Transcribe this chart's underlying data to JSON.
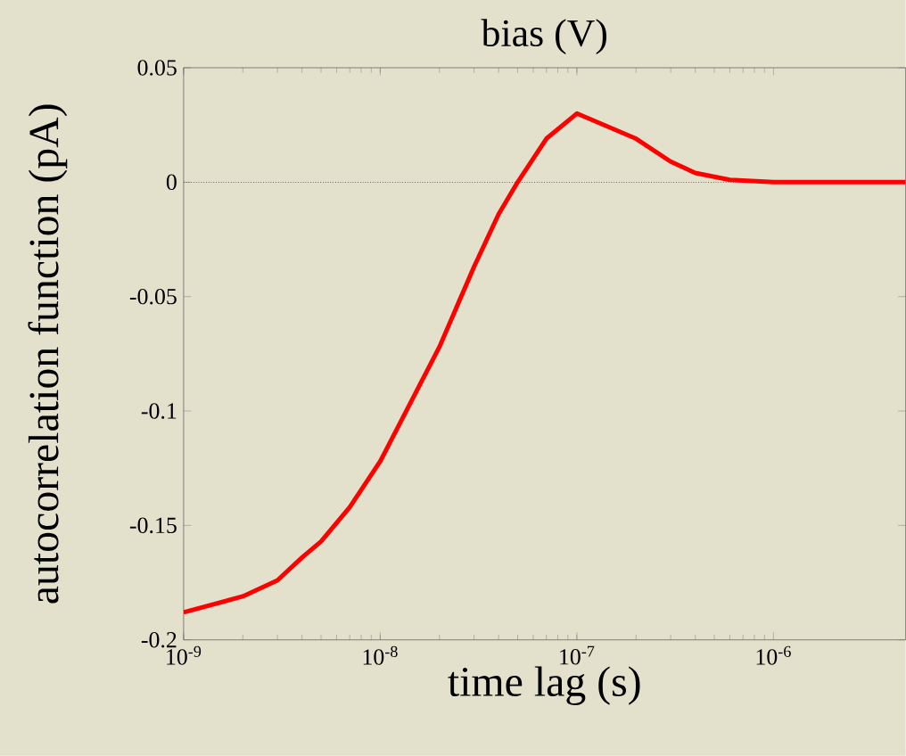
{
  "chart_data": {
    "type": "line",
    "title": "bias (V)",
    "xlabel": "time lag (s)",
    "ylabel": "autocorrelation function (pA)",
    "log": "x",
    "x": [
      1e-09,
      2e-09,
      3e-09,
      4e-09,
      5e-09,
      7e-09,
      1e-08,
      2e-08,
      3e-08,
      4e-08,
      5e-08,
      7e-08,
      1e-07,
      2e-07,
      3e-07,
      4e-07,
      6e-07,
      1e-06,
      2e-06,
      4.7e-06
    ],
    "series": [
      {
        "color": "#ff0000",
        "values": [
          -0.188,
          -0.181,
          -0.174,
          -0.164,
          -0.157,
          -0.142,
          -0.122,
          -0.072,
          -0.037,
          -0.014,
          0.0,
          0.019,
          0.03,
          0.019,
          0.009,
          0.004,
          0.001,
          0.0,
          0.0,
          0.0
        ]
      }
    ],
    "xlim": [
      1e-09,
      4.7e-06
    ],
    "ylim": [
      -0.2,
      0.05
    ],
    "xticks": [
      {
        "value": 1e-09,
        "label": "10$^{-9}$"
      },
      {
        "value": 1e-08,
        "label": "10$^{-8}$"
      },
      {
        "value": 1e-07,
        "label": "10$^{-7}$"
      },
      {
        "value": 1e-06,
        "label": "10$^{-6}$"
      }
    ],
    "yticks": [
      -0.2,
      -0.15,
      -0.1,
      -0.05,
      0,
      0.05
    ],
    "ref_lines": [
      {
        "axis": "y",
        "value": 0,
        "color": "#000000",
        "line_style": "dotted"
      }
    ],
    "marker": "none",
    "line_style": "solid"
  }
}
